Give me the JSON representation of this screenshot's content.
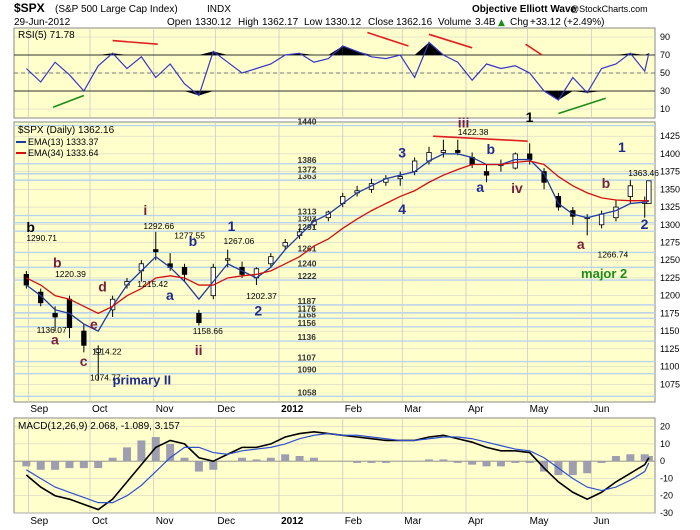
{
  "header": {
    "symbol": "$SPX",
    "name": "(S&P 500 Large Cap Index)",
    "exchange": "INDX",
    "date": "29-Jun-2012",
    "open_label": "Open",
    "open": "1330.12",
    "high_label": "High",
    "high": "1362.17",
    "low_label": "Low",
    "low": "1330.12",
    "close_label": "Close",
    "close": "1362.16",
    "volume_label": "Volume",
    "volume": "3.4B",
    "chg_label": "Chg",
    "chg": "+33.12 (+2.49%)",
    "up_arrow": "▲",
    "watermark_left": "Objective Elliott Wave",
    "watermark_right": "@StockCharts.com"
  },
  "colors": {
    "panel_bg": "#FFFFCC",
    "grid": "#C9C9C9",
    "fib_lines": "#B9D3EE",
    "price": "#000000",
    "ema13": "#1F3BA0",
    "ema34": "#D01010",
    "rsi_line": "#3636C8",
    "trend_red": "#E02020",
    "trend_green": "#1A8C1A",
    "wave_blue": "#1F2C8E",
    "wave_purple": "#7A1F3D",
    "wave_green": "#1A8C1A",
    "macd_line": "#000000",
    "signal_line": "#3050D0",
    "histogram": "#9E9EB0"
  },
  "chart_data": [
    {
      "type": "line",
      "title": "RSI(5) 71.78",
      "panel": "rsi",
      "ylim": [
        0,
        100
      ],
      "ticks": [
        10,
        30,
        50,
        70,
        90
      ],
      "reference_lines": [
        30,
        50,
        70
      ],
      "x_dates": [
        "2011-08-31",
        "2011-09-07",
        "2011-09-14",
        "2011-09-21",
        "2011-09-28",
        "2011-10-05",
        "2011-10-12",
        "2011-10-19",
        "2011-10-26",
        "2011-11-02",
        "2011-11-09",
        "2011-11-16",
        "2011-11-23",
        "2011-11-30",
        "2011-12-07",
        "2011-12-14",
        "2011-12-21",
        "2011-12-28",
        "2012-01-04",
        "2012-01-11",
        "2012-01-18",
        "2012-01-25",
        "2012-02-01",
        "2012-02-08",
        "2012-02-15",
        "2012-02-22",
        "2012-02-29",
        "2012-03-07",
        "2012-03-14",
        "2012-03-21",
        "2012-03-28",
        "2012-04-04",
        "2012-04-11",
        "2012-04-18",
        "2012-04-25",
        "2012-05-02",
        "2012-05-09",
        "2012-05-16",
        "2012-05-23",
        "2012-05-30",
        "2012-06-06",
        "2012-06-13",
        "2012-06-20",
        "2012-06-27",
        "2012-06-29"
      ],
      "values": [
        55,
        40,
        62,
        48,
        30,
        58,
        72,
        55,
        68,
        45,
        60,
        38,
        25,
        74,
        62,
        50,
        55,
        60,
        70,
        72,
        62,
        66,
        80,
        74,
        68,
        66,
        70,
        45,
        84,
        70,
        62,
        42,
        60,
        55,
        58,
        50,
        30,
        20,
        45,
        28,
        55,
        60,
        72,
        52,
        72
      ]
    },
    {
      "type": "candlestick",
      "title": "$SPX (Daily) 1362.16",
      "panel": "price",
      "ylim": [
        1050,
        1445
      ],
      "ticks": [
        1075,
        1100,
        1125,
        1150,
        1175,
        1200,
        1225,
        1250,
        1275,
        1300,
        1325,
        1350,
        1375,
        1400,
        1425
      ],
      "x_tick_labels": [
        "Sep",
        "Oct",
        "Nov",
        "Dec",
        "2012",
        "Feb",
        "Mar",
        "Apr",
        "May",
        "Jun"
      ],
      "fib_levels": [
        1058,
        1090,
        1107,
        1136,
        1156,
        1168,
        1176,
        1187,
        1222,
        1240,
        1261,
        1291,
        1303,
        1313,
        1363,
        1372,
        1386,
        1440
      ],
      "series": [
        {
          "name": "EMA(13) 1333.37",
          "values": [
            1215,
            1200,
            1180,
            1175,
            1160,
            1150,
            1185,
            1215,
            1235,
            1255,
            1240,
            1220,
            1195,
            1220,
            1245,
            1235,
            1225,
            1240,
            1265,
            1285,
            1305,
            1315,
            1330,
            1345,
            1355,
            1365,
            1370,
            1375,
            1390,
            1400,
            1400,
            1395,
            1385,
            1385,
            1392,
            1392,
            1372,
            1330,
            1315,
            1310,
            1315,
            1320,
            1330,
            1332,
            1333
          ]
        },
        {
          "name": "EMA(34) 1333.64",
          "values": [
            1225,
            1215,
            1200,
            1195,
            1185,
            1175,
            1185,
            1200,
            1210,
            1225,
            1228,
            1225,
            1215,
            1215,
            1225,
            1228,
            1230,
            1235,
            1245,
            1255,
            1270,
            1280,
            1295,
            1308,
            1320,
            1330,
            1340,
            1348,
            1360,
            1370,
            1378,
            1385,
            1385,
            1385,
            1388,
            1390,
            1385,
            1368,
            1355,
            1345,
            1338,
            1335,
            1334,
            1334,
            1334
          ]
        }
      ],
      "ohlc": {
        "dates": [
          "2011-08-31",
          "2011-09-07",
          "2011-09-14",
          "2011-09-21",
          "2011-09-28",
          "2011-10-05",
          "2011-10-12",
          "2011-10-19",
          "2011-10-26",
          "2011-11-02",
          "2011-11-09",
          "2011-11-16",
          "2011-11-23",
          "2011-11-30",
          "2011-12-07",
          "2011-12-14",
          "2011-12-21",
          "2011-12-28",
          "2012-01-04",
          "2012-01-11",
          "2012-01-18",
          "2012-01-25",
          "2012-02-01",
          "2012-02-08",
          "2012-02-15",
          "2012-02-22",
          "2012-02-29",
          "2012-03-07",
          "2012-03-14",
          "2012-03-21",
          "2012-03-28",
          "2012-04-04",
          "2012-04-11",
          "2012-04-18",
          "2012-04-25",
          "2012-05-02",
          "2012-05-09",
          "2012-05-16",
          "2012-05-23",
          "2012-05-30",
          "2012-06-06",
          "2012-06-13",
          "2012-06-20",
          "2012-06-27",
          "2012-06-29"
        ],
        "open": [
          1230,
          1205,
          1175,
          1195,
          1150,
          1120,
          1180,
          1215,
          1235,
          1265,
          1245,
          1240,
          1175,
          1200,
          1250,
          1240,
          1225,
          1245,
          1270,
          1285,
          1300,
          1310,
          1330,
          1345,
          1350,
          1360,
          1365,
          1375,
          1390,
          1402,
          1405,
          1395,
          1375,
          1385,
          1380,
          1400,
          1375,
          1340,
          1320,
          1310,
          1300,
          1310,
          1340,
          1330,
          1330
        ],
        "high": [
          1235,
          1210,
          1185,
          1200,
          1160,
          1130,
          1200,
          1225,
          1250,
          1290,
          1260,
          1245,
          1180,
          1245,
          1265,
          1248,
          1240,
          1260,
          1280,
          1295,
          1310,
          1320,
          1345,
          1355,
          1365,
          1370,
          1375,
          1395,
          1410,
          1420,
          1420,
          1402,
          1385,
          1392,
          1402,
          1415,
          1380,
          1345,
          1325,
          1315,
          1320,
          1335,
          1363,
          1340,
          1362
        ],
        "low": [
          1210,
          1185,
          1150,
          1140,
          1120,
          1080,
          1170,
          1210,
          1220,
          1250,
          1235,
          1220,
          1158,
          1195,
          1240,
          1225,
          1215,
          1240,
          1265,
          1280,
          1295,
          1305,
          1325,
          1340,
          1345,
          1355,
          1355,
          1370,
          1385,
          1395,
          1398,
          1380,
          1360,
          1375,
          1378,
          1385,
          1350,
          1320,
          1300,
          1285,
          1295,
          1305,
          1330,
          1310,
          1330
        ],
        "close": [
          1215,
          1190,
          1170,
          1155,
          1130,
          1125,
          1195,
          1220,
          1245,
          1262,
          1240,
          1230,
          1162,
          1240,
          1252,
          1230,
          1238,
          1255,
          1275,
          1290,
          1305,
          1318,
          1340,
          1348,
          1358,
          1365,
          1368,
          1390,
          1402,
          1405,
          1402,
          1385,
          1370,
          1385,
          1400,
          1392,
          1360,
          1325,
          1312,
          1310,
          1315,
          1325,
          1355,
          1332,
          1362
        ]
      }
    },
    {
      "type": "line",
      "title": "MACD(12,26,9) 2.068, -1.089, 3.157",
      "panel": "macd",
      "ylim": [
        -30,
        25
      ],
      "ticks": [
        -30,
        -20,
        -10,
        0,
        10,
        20
      ],
      "series": [
        {
          "name": "MACD",
          "values": [
            -8,
            -15,
            -20,
            -22,
            -25,
            -28,
            -22,
            -12,
            -2,
            8,
            12,
            10,
            2,
            0,
            4,
            8,
            8,
            10,
            14,
            16,
            17,
            16,
            15,
            14,
            13,
            12,
            12,
            12,
            14,
            15,
            13,
            11,
            8,
            6,
            6,
            5,
            -4,
            -12,
            -18,
            -22,
            -18,
            -12,
            -7,
            -2,
            2
          ]
        },
        {
          "name": "Signal",
          "values": [
            -5,
            -10,
            -15,
            -18,
            -21,
            -24,
            -24,
            -20,
            -14,
            -6,
            2,
            8,
            8,
            5,
            4,
            6,
            7,
            8,
            10,
            13,
            15,
            16,
            15,
            15,
            14,
            13,
            12,
            12,
            13,
            14,
            14,
            13,
            11,
            9,
            7,
            6,
            2,
            -4,
            -10,
            -15,
            -17,
            -15,
            -11,
            -6,
            -1
          ]
        },
        {
          "name": "Histogram",
          "values": [
            -3,
            -5,
            -5,
            -4,
            -4,
            -4,
            2,
            8,
            12,
            14,
            10,
            2,
            -6,
            -5,
            0,
            2,
            1,
            2,
            4,
            3,
            2,
            0,
            0,
            -1,
            -1,
            -1,
            0,
            0,
            1,
            1,
            -1,
            -2,
            -3,
            -3,
            -1,
            -1,
            -6,
            -8,
            -8,
            -7,
            -1,
            3,
            4,
            4,
            3
          ]
        }
      ]
    }
  ],
  "annotations": {
    "rsi_fills_note": "",
    "wave_labels": [
      {
        "text": "b",
        "color": "wave_black",
        "date": "2011-08-31",
        "price": 1290
      },
      {
        "text": "1290.71",
        "color": "text",
        "date": "2011-08-31",
        "price": 1277
      },
      {
        "text": "b",
        "color": "wave_purple",
        "date": "2011-09-13",
        "price": 1240
      },
      {
        "text": "1220.39",
        "color": "text",
        "date": "2011-09-14",
        "price": 1226
      },
      {
        "text": "d",
        "color": "wave_purple",
        "date": "2011-10-05",
        "price": 1206
      },
      {
        "text": "1136.07",
        "color": "text",
        "date": "2011-09-05",
        "price": 1147
      },
      {
        "text": "a",
        "color": "wave_purple",
        "date": "2011-09-12",
        "price": 1131
      },
      {
        "text": "e",
        "color": "wave_purple",
        "date": "2011-10-01",
        "price": 1153
      },
      {
        "text": "1114.22",
        "color": "text",
        "date": "2011-10-02",
        "price": 1117
      },
      {
        "text": "c",
        "color": "wave_purple",
        "date": "2011-09-26",
        "price": 1101
      },
      {
        "text": "1074.77",
        "color": "text",
        "date": "2011-10-01",
        "price": 1080
      },
      {
        "text": "primary II",
        "color": "wave_blue",
        "date": "2011-10-12",
        "price": 1075
      },
      {
        "text": "i",
        "color": "wave_purple",
        "date": "2011-10-27",
        "price": 1314
      },
      {
        "text": "1292.66",
        "color": "text",
        "date": "2011-10-27",
        "price": 1294
      },
      {
        "text": "1277.55",
        "color": "text",
        "date": "2011-11-11",
        "price": 1281
      },
      {
        "text": "b",
        "color": "wave_blue",
        "date": "2011-11-18",
        "price": 1270
      },
      {
        "text": "1215.42",
        "color": "text",
        "date": "2011-10-24",
        "price": 1212
      },
      {
        "text": "a",
        "color": "wave_blue",
        "date": "2011-11-07",
        "price": 1194
      },
      {
        "text": "1158.66",
        "color": "text",
        "date": "2011-11-20",
        "price": 1146
      },
      {
        "text": "ii",
        "color": "wave_purple",
        "date": "2011-11-21",
        "price": 1116
      },
      {
        "text": "1",
        "color": "wave_blue",
        "date": "2011-12-07",
        "price": 1291
      },
      {
        "text": "1267.06",
        "color": "text",
        "date": "2011-12-05",
        "price": 1273
      },
      {
        "text": "1202.37",
        "color": "text",
        "date": "2011-12-16",
        "price": 1195
      },
      {
        "text": "2",
        "color": "wave_blue",
        "date": "2011-12-20",
        "price": 1172
      },
      {
        "text": "3",
        "color": "wave_blue",
        "date": "2012-02-28",
        "price": 1395
      },
      {
        "text": "4",
        "color": "wave_blue",
        "date": "2012-02-28",
        "price": 1315
      },
      {
        "text": "iii",
        "color": "wave_purple",
        "date": "2012-03-28",
        "price": 1437
      },
      {
        "text": "1422.38",
        "color": "text",
        "date": "2012-03-28",
        "price": 1427
      },
      {
        "text": "1",
        "color": "wave_black",
        "date": "2012-04-30",
        "price": 1445
      },
      {
        "text": "b",
        "color": "wave_blue",
        "date": "2012-04-11",
        "price": 1400
      },
      {
        "text": "a",
        "color": "wave_blue",
        "date": "2012-04-06",
        "price": 1346
      },
      {
        "text": "iv",
        "color": "wave_purple",
        "date": "2012-04-23",
        "price": 1345
      },
      {
        "text": "a",
        "color": "wave_purple",
        "date": "2012-05-25",
        "price": 1266
      },
      {
        "text": "b",
        "color": "wave_purple",
        "date": "2012-06-06",
        "price": 1352
      },
      {
        "text": "1266.74",
        "color": "text",
        "date": "2012-06-04",
        "price": 1254
      },
      {
        "text": "major 2",
        "color": "wave_green",
        "date": "2012-05-27",
        "price": 1225
      },
      {
        "text": "1",
        "color": "wave_blue",
        "date": "2012-06-14",
        "price": 1403
      },
      {
        "text": "1363.46",
        "color": "text",
        "date": "2012-06-19",
        "price": 1369
      },
      {
        "text": "2",
        "color": "wave_blue",
        "date": "2012-06-25",
        "price": 1294
      }
    ]
  }
}
